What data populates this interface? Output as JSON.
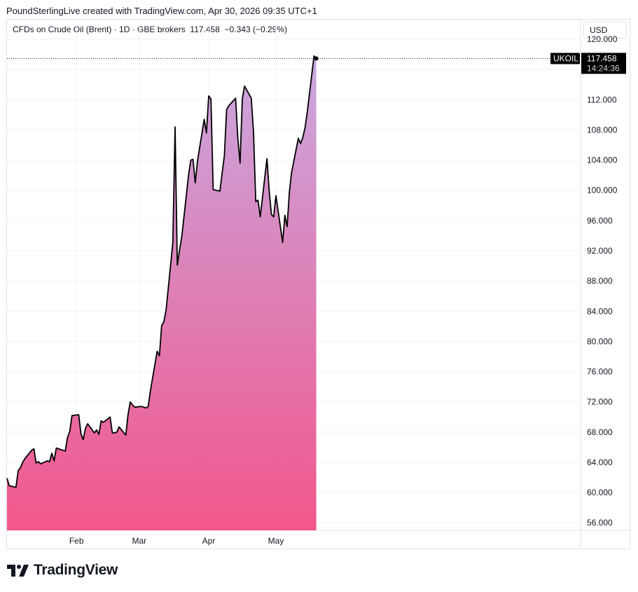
{
  "header": {
    "attribution": "PoundSterlingLive created with TradingView.com, Apr 30, 2026 09:35 UTC+1"
  },
  "legend": {
    "instrument": "CFDs on Crude Oil (Brent) · 1D · GBE brokers",
    "last": "117.458",
    "change": "−0.343 (−0.29%)"
  },
  "currency_button": "USD",
  "price_tag": {
    "symbol": "UKOIL",
    "price": "117.458",
    "countdown": "14:24:36"
  },
  "footer": {
    "logo_text": "TradingView"
  },
  "colors": {
    "fill_top": "#c9a8e0",
    "fill_bottom": "#f2578c",
    "line": "#000000",
    "tag_bg": "#000000"
  },
  "chart_data": {
    "type": "area",
    "title": "CFDs on Crude Oil (Brent) · 1D · GBE brokers",
    "xlabel": "",
    "ylabel": "",
    "x_ticks": [
      "Feb",
      "Mar",
      "Apr",
      "May"
    ],
    "y_ticks": [
      "56.000",
      "60.000",
      "64.000",
      "68.000",
      "72.000",
      "76.000",
      "80.000",
      "84.000",
      "88.000",
      "92.000",
      "96.000",
      "100.000",
      "104.000",
      "108.000",
      "112.000",
      "116.000",
      "120.000"
    ],
    "ylim": [
      55,
      122.6
    ],
    "grid": true,
    "series": [
      {
        "values": [
          {
            "x": "2026-01-01",
            "y": 61.9
          },
          {
            "x": "2026-01-02",
            "y": 60.9
          },
          {
            "x": "2026-01-05",
            "y": 60.7
          },
          {
            "x": "2026-01-06",
            "y": 62.9
          },
          {
            "x": "2026-01-07",
            "y": 63.3
          },
          {
            "x": "2026-01-08",
            "y": 64.0
          },
          {
            "x": "2026-01-09",
            "y": 64.5
          },
          {
            "x": "2026-01-12",
            "y": 65.6
          },
          {
            "x": "2026-01-13",
            "y": 65.8
          },
          {
            "x": "2026-01-14",
            "y": 63.9
          },
          {
            "x": "2026-01-15",
            "y": 64.1
          },
          {
            "x": "2026-01-16",
            "y": 63.8
          },
          {
            "x": "2026-01-19",
            "y": 64.2
          },
          {
            "x": "2026-01-20",
            "y": 64.1
          },
          {
            "x": "2026-01-21",
            "y": 65.2
          },
          {
            "x": "2026-01-22",
            "y": 64.2
          },
          {
            "x": "2026-01-23",
            "y": 65.9
          },
          {
            "x": "2026-01-26",
            "y": 65.6
          },
          {
            "x": "2026-01-27",
            "y": 65.5
          },
          {
            "x": "2026-01-28",
            "y": 67.3
          },
          {
            "x": "2026-01-29",
            "y": 68.1
          },
          {
            "x": "2026-01-30",
            "y": 70.2
          },
          {
            "x": "2026-02-02",
            "y": 70.3
          },
          {
            "x": "2026-02-03",
            "y": 67.8
          },
          {
            "x": "2026-02-04",
            "y": 67.0
          },
          {
            "x": "2026-02-05",
            "y": 68.5
          },
          {
            "x": "2026-02-06",
            "y": 69.1
          },
          {
            "x": "2026-02-09",
            "y": 67.9
          },
          {
            "x": "2026-02-10",
            "y": 68.3
          },
          {
            "x": "2026-02-11",
            "y": 67.7
          },
          {
            "x": "2026-02-12",
            "y": 69.5
          },
          {
            "x": "2026-02-13",
            "y": 69.3
          },
          {
            "x": "2026-02-16",
            "y": 70.0
          },
          {
            "x": "2026-02-17",
            "y": 67.9
          },
          {
            "x": "2026-02-18",
            "y": 67.9
          },
          {
            "x": "2026-02-19",
            "y": 68.0
          },
          {
            "x": "2026-02-20",
            "y": 68.7
          },
          {
            "x": "2026-02-23",
            "y": 67.6
          },
          {
            "x": "2026-02-24",
            "y": 70.3
          },
          {
            "x": "2026-02-25",
            "y": 72.0
          },
          {
            "x": "2026-02-26",
            "y": 71.6
          },
          {
            "x": "2026-02-27",
            "y": 71.3
          },
          {
            "x": "2026-03-02",
            "y": 71.4
          },
          {
            "x": "2026-03-03",
            "y": 71.3
          },
          {
            "x": "2026-03-04",
            "y": 71.2
          },
          {
            "x": "2026-03-05",
            "y": 71.4
          },
          {
            "x": "2026-03-06",
            "y": 73.5
          },
          {
            "x": "2026-03-09",
            "y": 78.7
          },
          {
            "x": "2026-03-10",
            "y": 78.1
          },
          {
            "x": "2026-03-11",
            "y": 82.1
          },
          {
            "x": "2026-03-12",
            "y": 82.6
          },
          {
            "x": "2026-03-13",
            "y": 84.2
          },
          {
            "x": "2026-03-16",
            "y": 93.1
          },
          {
            "x": "2026-03-17",
            "y": 108.4
          },
          {
            "x": "2026-03-18",
            "y": 90.1
          },
          {
            "x": "2026-03-19",
            "y": 92.1
          },
          {
            "x": "2026-03-20",
            "y": 93.9
          },
          {
            "x": "2026-03-23",
            "y": 102.0
          },
          {
            "x": "2026-03-24",
            "y": 104.0
          },
          {
            "x": "2026-03-25",
            "y": 104.1
          },
          {
            "x": "2026-03-26",
            "y": 101.0
          },
          {
            "x": "2026-03-27",
            "y": 103.9
          },
          {
            "x": "2026-03-30",
            "y": 109.4
          },
          {
            "x": "2026-03-31",
            "y": 107.6
          },
          {
            "x": "2026-04-01",
            "y": 112.5
          },
          {
            "x": "2026-04-02",
            "y": 112.1
          },
          {
            "x": "2026-04-03",
            "y": 100.1
          },
          {
            "x": "2026-04-06",
            "y": 99.9
          },
          {
            "x": "2026-04-07",
            "y": 102.3
          },
          {
            "x": "2026-04-08",
            "y": 104.6
          },
          {
            "x": "2026-04-09",
            "y": 110.7
          },
          {
            "x": "2026-04-10",
            "y": 111.2
          },
          {
            "x": "2026-04-13",
            "y": 112.2
          },
          {
            "x": "2026-04-14",
            "y": 106.9
          },
          {
            "x": "2026-04-15",
            "y": 103.6
          },
          {
            "x": "2026-04-16",
            "y": 112.1
          },
          {
            "x": "2026-04-17",
            "y": 113.8
          },
          {
            "x": "2026-04-20",
            "y": 112.2
          },
          {
            "x": "2026-04-21",
            "y": 107.7
          },
          {
            "x": "2026-04-22",
            "y": 98.5
          },
          {
            "x": "2026-04-23",
            "y": 98.7
          },
          {
            "x": "2026-04-24",
            "y": 96.5
          },
          {
            "x": "2026-04-27",
            "y": 104.2
          },
          {
            "x": "2026-04-28",
            "y": 99.9
          },
          {
            "x": "2026-04-29",
            "y": 96.8
          },
          {
            "x": "2026-04-30",
            "y": 96.5
          },
          {
            "x": "2026-05-01",
            "y": 99.3
          },
          {
            "x": "2026-05-04",
            "y": 93.1
          },
          {
            "x": "2026-05-05",
            "y": 96.7
          },
          {
            "x": "2026-05-06",
            "y": 95.2
          },
          {
            "x": "2026-05-07",
            "y": 99.8
          },
          {
            "x": "2026-05-08",
            "y": 102.4
          },
          {
            "x": "2026-05-11",
            "y": 106.9
          },
          {
            "x": "2026-05-12",
            "y": 106.2
          },
          {
            "x": "2026-05-13",
            "y": 107.0
          },
          {
            "x": "2026-05-14",
            "y": 108.3
          },
          {
            "x": "2026-05-15",
            "y": 110.4
          },
          {
            "x": "2026-05-18",
            "y": 117.8
          },
          {
            "x": "2026-05-19",
            "y": 117.458
          }
        ]
      }
    ]
  }
}
